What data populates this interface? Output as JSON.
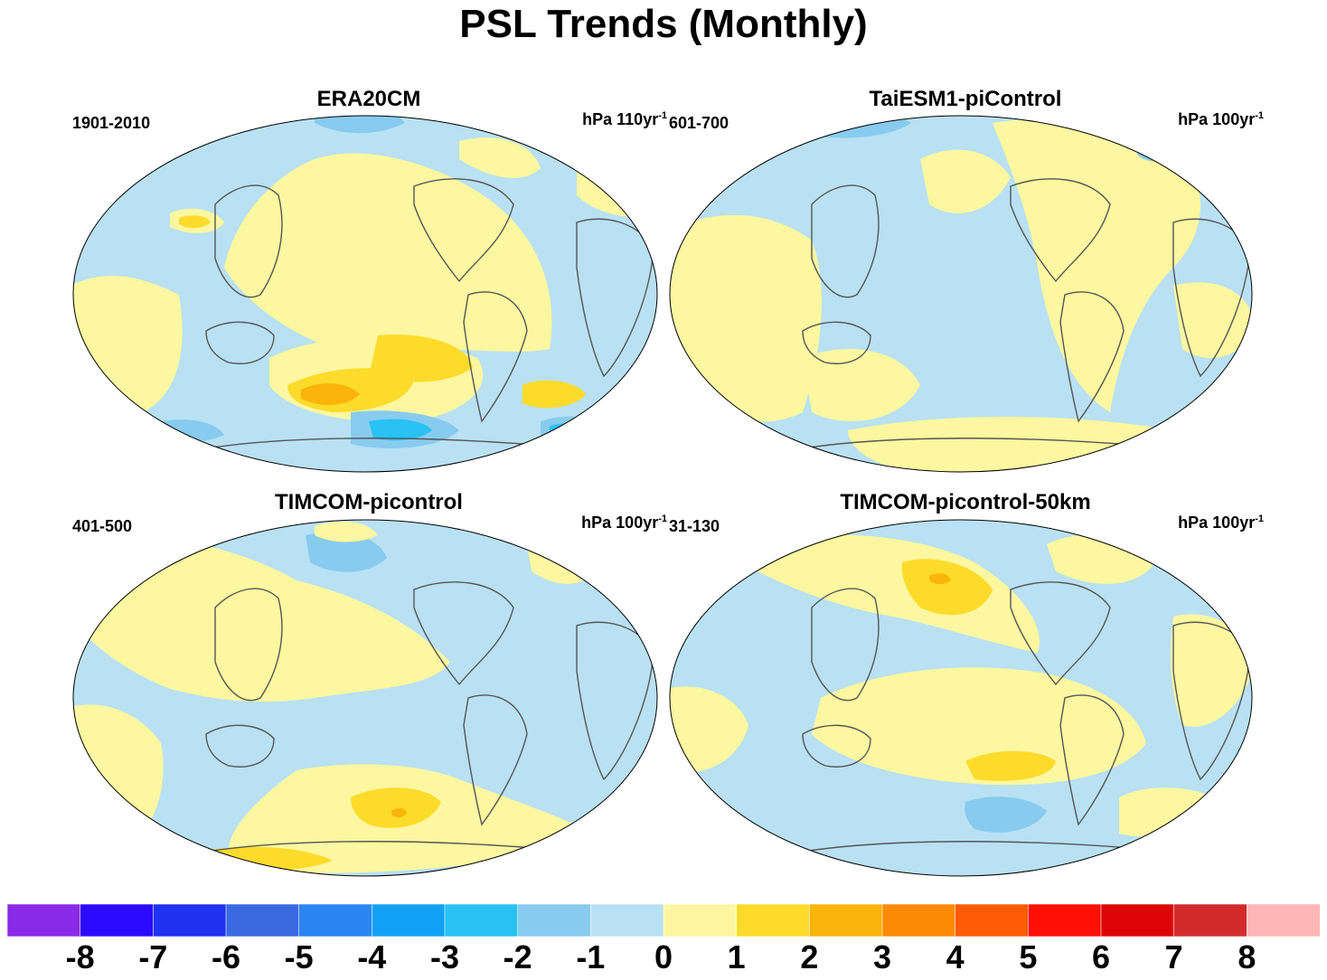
{
  "title": "PSL Trends (Monthly)",
  "panels": [
    {
      "name": "ERA20CM",
      "period": "1901-2010",
      "units": "hPa 110yr",
      "units_sup": "-1"
    },
    {
      "name": "TaiESM1-piControl",
      "period": "601-700",
      "units": "hPa 100yr",
      "units_sup": "-1"
    },
    {
      "name": "TIMCOM-picontrol",
      "period": "401-500",
      "units": "hPa 100yr",
      "units_sup": "-1"
    },
    {
      "name": "TIMCOM-picontrol-50km",
      "period": "31-130",
      "units": "hPa 100yr",
      "units_sup": "-1"
    }
  ],
  "colorbar": {
    "labels": [
      "-8",
      "-7",
      "-6",
      "-5",
      "-4",
      "-3",
      "-2",
      "-1",
      "0",
      "1",
      "2",
      "3",
      "4",
      "5",
      "6",
      "7",
      "8"
    ],
    "colors": [
      "#8a2be8",
      "#2b0bff",
      "#1f33f0",
      "#3a6ae0",
      "#2a86f2",
      "#12a2f5",
      "#28c2f5",
      "#88cbef",
      "#b9e1f3",
      "#fcf7a0",
      "#fddb2b",
      "#fbb40c",
      "#ff8a06",
      "#ff5a06",
      "#ff1006",
      "#dc0406",
      "#d32b2b",
      "#ffb6b6"
    ]
  },
  "palette": {
    "ocean_light": "#b9e1f3",
    "positive_light": "#fcf7a0",
    "positive_mid": "#fddb2b",
    "positive_strong": "#fbb40c",
    "negative_mid": "#88cbef",
    "negative_strong": "#28c2f5",
    "coast": "#555555"
  }
}
